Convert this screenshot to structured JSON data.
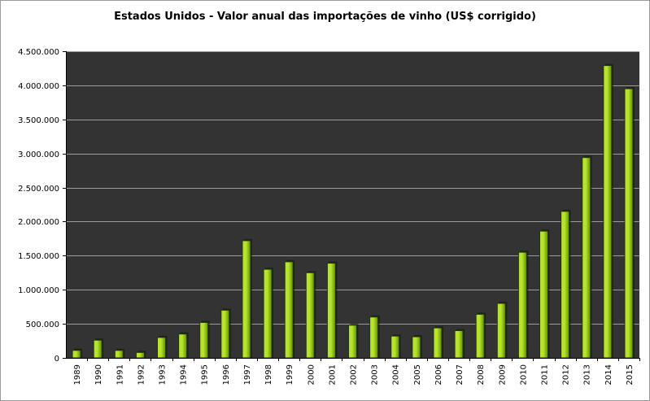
{
  "chart_data": {
    "type": "bar",
    "title": "Estados Unidos - Valor anual das importações de vinho (US$ corrigido)",
    "xlabel": "",
    "ylabel": "",
    "categories": [
      "1989",
      "1990",
      "1991",
      "1992",
      "1993",
      "1994",
      "1995",
      "1996",
      "1997",
      "1998",
      "1999",
      "2000",
      "2001",
      "2002",
      "2003",
      "2004",
      "2005",
      "2006",
      "2007",
      "2008",
      "2009",
      "2010",
      "2011",
      "2012",
      "2013",
      "2014",
      "2015"
    ],
    "values": [
      110000,
      260000,
      110000,
      80000,
      300000,
      350000,
      520000,
      700000,
      1720000,
      1300000,
      1410000,
      1250000,
      1390000,
      480000,
      600000,
      320000,
      310000,
      440000,
      400000,
      640000,
      800000,
      1550000,
      1860000,
      2150000,
      2940000,
      4290000,
      3950000
    ],
    "ylim": [
      0,
      4500000
    ],
    "yticks": [
      0,
      500000,
      1000000,
      1500000,
      2000000,
      2500000,
      3000000,
      3500000,
      4000000,
      4500000
    ],
    "ytick_labels": [
      "0",
      "500.000",
      "1.000.000",
      "1.500.000",
      "2.000.000",
      "2.500.000",
      "3.000.000",
      "3.500.000",
      "4.000.000",
      "4.500.000"
    ],
    "grid": true,
    "legend": "none",
    "colors": {
      "plot_background": "#333333",
      "gridline": "#9c9c9c",
      "bar_light": "#b7e32a",
      "bar_dark": "#5e8f09",
      "bar_outline": "#203804"
    }
  }
}
